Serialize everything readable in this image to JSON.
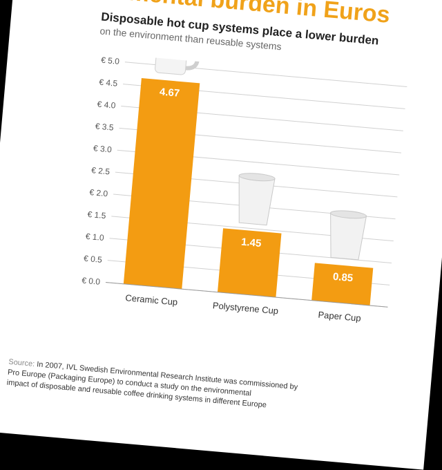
{
  "chart_data": {
    "type": "bar",
    "title": "Environmental burden in Euros",
    "subtitle": "Disposable hot cup systems place a lower burden",
    "subtitle2": "on the environment than reusable systems",
    "categories": [
      "Ceramic Cup",
      "Polystyrene Cup",
      "Paper Cup"
    ],
    "values": [
      4.67,
      1.45,
      0.85
    ],
    "value_labels": [
      "4.67",
      "1.45",
      "0.85"
    ],
    "ylim": [
      0,
      5
    ],
    "yticks": [
      "€ 0.0",
      "€ 0.5",
      "€ 1.0",
      "€ 1.5",
      "€ 2.0",
      "€ 2.5",
      "€ 3.0",
      "€ 3.5",
      "€ 4.0",
      "€ 4.5",
      "€ 5.0"
    ],
    "grid": true,
    "bar_color": "#f39c12",
    "icons": [
      "ceramic-mug-icon",
      "polystyrene-cup-icon",
      "paper-cup-icon"
    ]
  },
  "footer": {
    "source_label": "Source:",
    "source_text": "In 2007, IVL Swedish Environmental Research Institute was commissioned by",
    "line2": "Pro Europe (Packaging Europe) to conduct a study on the environmental",
    "line3": "impact of disposable and reusable coffee drinking systems in different Europe"
  }
}
